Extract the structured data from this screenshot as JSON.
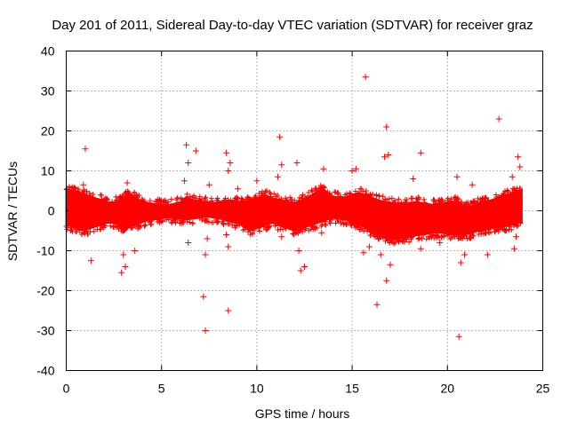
{
  "chart_data": {
    "type": "scatter",
    "title": "Day 201 of 2011, Sidereal Day-to-day VTEC variation (SDTVAR) for receiver graz",
    "xlabel": "GPS time / hours",
    "ylabel": "SDTVAR / TECUs",
    "xlim": [
      0,
      25
    ],
    "ylim": [
      -40,
      40
    ],
    "xticks": [
      0,
      5,
      10,
      15,
      20,
      25
    ],
    "yticks": [
      -40,
      -30,
      -20,
      -10,
      0,
      10,
      20,
      30,
      40
    ],
    "grid": true,
    "marker": "+",
    "colors": {
      "series": "#ff0000",
      "grid": "#a0a0a0",
      "frame": "#000000"
    },
    "series": [
      {
        "name": "SDTVAR",
        "note": "dense continuous band of points between roughly -5 and +5 TECU over 0-24 h",
        "band": {
          "x": [
            0.0,
            0.3,
            0.6,
            0.9,
            1.2,
            1.5,
            1.8,
            2.1,
            2.4,
            2.7,
            3.0,
            3.3,
            3.6,
            3.9,
            4.2,
            4.5,
            4.8,
            5.1,
            5.4,
            5.7,
            6.0,
            6.3,
            6.6,
            6.9,
            7.2,
            7.5,
            7.8,
            8.1,
            8.4,
            8.7,
            9.0,
            9.3,
            9.6,
            9.9,
            10.2,
            10.5,
            10.8,
            11.1,
            11.4,
            11.7,
            12.0,
            12.3,
            12.6,
            12.9,
            13.2,
            13.5,
            13.8,
            14.1,
            14.4,
            14.7,
            15.0,
            15.3,
            15.6,
            15.9,
            16.2,
            16.5,
            16.8,
            17.1,
            17.4,
            17.7,
            18.0,
            18.3,
            18.6,
            18.9,
            19.2,
            19.5,
            19.8,
            20.1,
            20.4,
            20.7,
            21.0,
            21.3,
            21.6,
            21.9,
            22.2,
            22.5,
            22.8,
            23.1,
            23.4,
            23.7,
            23.9
          ],
          "upper": [
            5.0,
            5.2,
            4.8,
            4.2,
            3.8,
            3.2,
            2.8,
            2.2,
            2.0,
            2.5,
            3.0,
            4.5,
            3.5,
            2.5,
            2.0,
            1.8,
            1.6,
            1.5,
            1.5,
            1.8,
            2.2,
            3.5,
            2.8,
            2.5,
            2.2,
            2.0,
            2.0,
            2.2,
            2.5,
            2.4,
            2.2,
            2.2,
            2.5,
            3.0,
            3.5,
            3.8,
            3.2,
            2.8,
            2.5,
            2.2,
            2.0,
            2.5,
            3.2,
            4.0,
            5.0,
            5.5,
            4.0,
            3.5,
            3.2,
            3.5,
            4.0,
            4.5,
            4.0,
            3.5,
            3.0,
            2.5,
            2.2,
            2.0,
            1.8,
            1.8,
            2.0,
            2.2,
            2.0,
            1.8,
            1.5,
            1.5,
            1.8,
            2.0,
            2.2,
            1.5,
            1.0,
            1.2,
            1.8,
            2.2,
            2.5,
            3.0,
            3.5,
            4.0,
            4.5,
            5.0,
            5.2
          ],
          "lower": [
            -3.5,
            -4.0,
            -4.5,
            -4.8,
            -4.5,
            -4.0,
            -3.5,
            -3.0,
            -3.0,
            -3.2,
            -5.5,
            -4.0,
            -3.5,
            -3.0,
            -2.5,
            -2.2,
            -2.0,
            -1.8,
            -1.8,
            -1.8,
            -2.0,
            -2.2,
            -2.0,
            -1.8,
            -1.5,
            -1.5,
            -1.8,
            -2.0,
            -2.5,
            -2.8,
            -3.0,
            -4.0,
            -5.0,
            -4.5,
            -4.0,
            -3.5,
            -3.0,
            -3.5,
            -4.0,
            -4.5,
            -5.0,
            -4.5,
            -4.0,
            -3.5,
            -3.0,
            -2.5,
            -2.0,
            -1.8,
            -2.0,
            -2.2,
            -2.5,
            -3.5,
            -4.0,
            -5.0,
            -6.0,
            -6.5,
            -6.8,
            -7.0,
            -7.0,
            -6.8,
            -6.5,
            -6.2,
            -6.0,
            -5.8,
            -5.5,
            -5.5,
            -5.5,
            -5.8,
            -6.0,
            -6.0,
            -5.8,
            -5.5,
            -5.0,
            -4.8,
            -4.5,
            -4.2,
            -4.0,
            -3.8,
            -3.5,
            -3.0,
            -3.0
          ]
        },
        "outliers": [
          [
            1.0,
            15.5
          ],
          [
            1.3,
            -12.5
          ],
          [
            0.9,
            6.5
          ],
          [
            2.9,
            -15.5
          ],
          [
            3.1,
            -14
          ],
          [
            3.0,
            -11
          ],
          [
            3.2,
            7
          ],
          [
            3.6,
            -10
          ],
          [
            6.3,
            16.5
          ],
          [
            6.4,
            12
          ],
          [
            6.2,
            7.5
          ],
          [
            6.4,
            -8
          ],
          [
            6.8,
            15
          ],
          [
            7.2,
            -21.5
          ],
          [
            7.3,
            -11
          ],
          [
            7.3,
            -30
          ],
          [
            7.4,
            -7
          ],
          [
            7.5,
            6.5
          ],
          [
            8.4,
            14.5
          ],
          [
            8.5,
            10
          ],
          [
            8.5,
            -25
          ],
          [
            8.6,
            12
          ],
          [
            8.5,
            -9
          ],
          [
            8.4,
            -6
          ],
          [
            9.0,
            5.5
          ],
          [
            10.0,
            7.5
          ],
          [
            11.2,
            18.5
          ],
          [
            11.3,
            11.5
          ],
          [
            11.1,
            8.5
          ],
          [
            11.3,
            -6.5
          ],
          [
            12.1,
            12
          ],
          [
            12.2,
            -10
          ],
          [
            12.3,
            -15
          ],
          [
            12.5,
            -14
          ],
          [
            13.5,
            10.5
          ],
          [
            13.4,
            -5.5
          ],
          [
            15.0,
            10
          ],
          [
            15.2,
            10.5
          ],
          [
            15.7,
            33.5
          ],
          [
            15.6,
            -10.5
          ],
          [
            15.9,
            -9
          ],
          [
            16.3,
            -23.5
          ],
          [
            16.5,
            -11
          ],
          [
            16.8,
            21
          ],
          [
            16.7,
            13.5
          ],
          [
            16.9,
            14
          ],
          [
            16.8,
            -17.5
          ],
          [
            17.0,
            -13.5
          ],
          [
            18.2,
            8
          ],
          [
            18.6,
            14.5
          ],
          [
            18.6,
            -9.5
          ],
          [
            19.6,
            -8
          ],
          [
            20.5,
            8.5
          ],
          [
            20.6,
            -31.5
          ],
          [
            20.7,
            -13
          ],
          [
            20.9,
            -11
          ],
          [
            21.3,
            6.5
          ],
          [
            22.1,
            -11
          ],
          [
            22.7,
            23
          ],
          [
            23.4,
            8.5
          ],
          [
            23.5,
            -9.5
          ],
          [
            23.7,
            13.5
          ],
          [
            23.8,
            11
          ],
          [
            23.6,
            -6.5
          ]
        ]
      }
    ]
  }
}
